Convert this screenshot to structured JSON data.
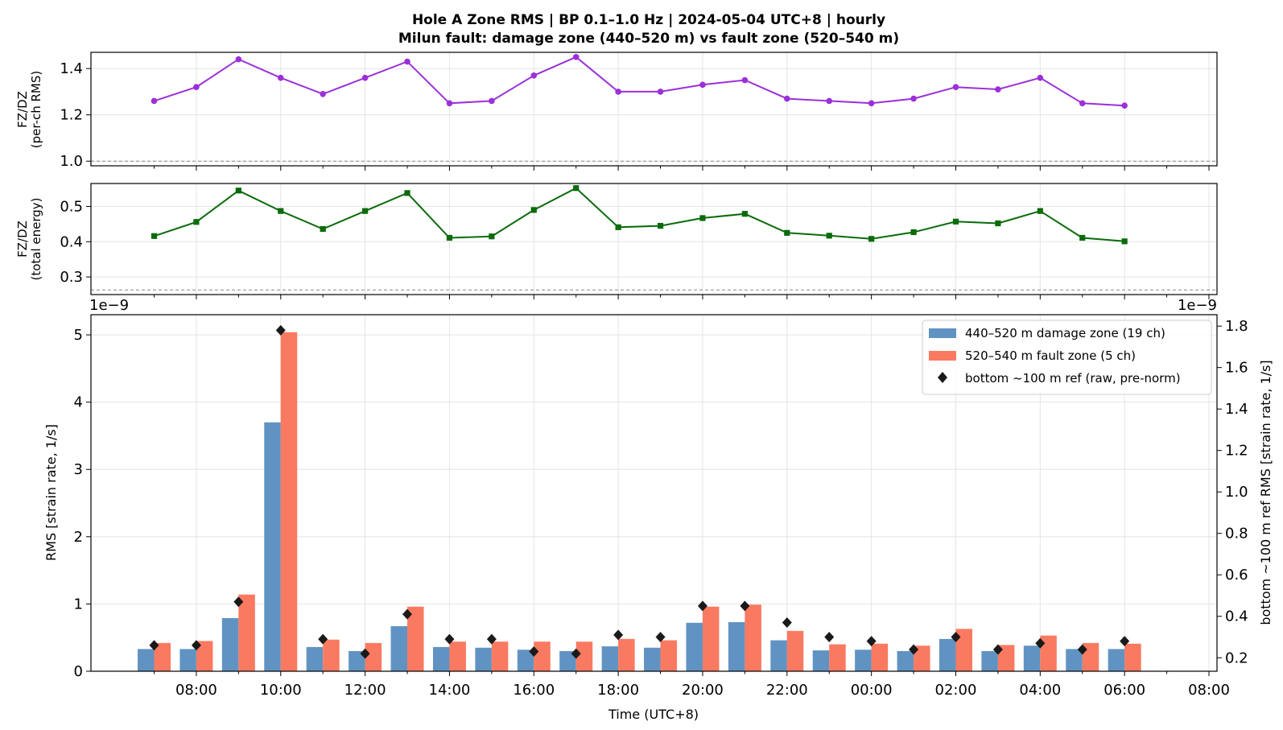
{
  "title_line1": "Hole A Zone RMS  |  BP 0.1–1.0 Hz  |  2024-05-04 UTC+8  |  hourly",
  "title_line2": "Milun fault: damage zone (440–520 m) vs fault zone (520–540 m)",
  "chart_data": [
    {
      "type": "line",
      "ylabel_line1": "FZ/DZ",
      "ylabel_line2": "(per-ch RMS)",
      "ylim": [
        0.98,
        1.47
      ],
      "yticks": [
        1.0,
        1.2,
        1.4
      ],
      "reference_line": 1.0,
      "color": "#9b30d9",
      "marker": "circle",
      "x": [
        "07:00",
        "08:00",
        "09:00",
        "10:00",
        "11:00",
        "12:00",
        "13:00",
        "14:00",
        "15:00",
        "16:00",
        "17:00",
        "18:00",
        "19:00",
        "20:00",
        "21:00",
        "22:00",
        "23:00",
        "00:00",
        "01:00",
        "02:00",
        "03:00",
        "04:00",
        "05:00",
        "06:00"
      ],
      "values": [
        1.26,
        1.32,
        1.44,
        1.36,
        1.29,
        1.36,
        1.43,
        1.25,
        1.26,
        1.37,
        1.45,
        1.3,
        1.3,
        1.33,
        1.35,
        1.27,
        1.26,
        1.25,
        1.27,
        1.32,
        1.31,
        1.36,
        1.25,
        1.24
      ]
    },
    {
      "type": "line",
      "ylabel_line1": "FZ/DZ",
      "ylabel_line2": "(total energy)",
      "ylim": [
        0.25,
        0.565
      ],
      "yticks": [
        0.3,
        0.4,
        0.5
      ],
      "reference_line": 0.263,
      "color": "#0a6b0a",
      "marker": "square",
      "x": [
        "07:00",
        "08:00",
        "09:00",
        "10:00",
        "11:00",
        "12:00",
        "13:00",
        "14:00",
        "15:00",
        "16:00",
        "17:00",
        "18:00",
        "19:00",
        "20:00",
        "21:00",
        "22:00",
        "23:00",
        "00:00",
        "01:00",
        "02:00",
        "03:00",
        "04:00",
        "05:00",
        "06:00"
      ],
      "values": [
        0.416,
        0.456,
        0.545,
        0.487,
        0.436,
        0.487,
        0.538,
        0.411,
        0.415,
        0.49,
        0.552,
        0.441,
        0.445,
        0.467,
        0.479,
        0.425,
        0.417,
        0.408,
        0.427,
        0.457,
        0.452,
        0.487,
        0.411,
        0.401
      ]
    },
    {
      "type": "bar",
      "xlabel": "Time (UTC+8)",
      "ylabel": "RMS  [strain rate, 1/s]",
      "ylabel_right": "bottom ~100 m ref RMS  [strain rate, 1/s]",
      "offset_label": "1e−9",
      "ylim": [
        0,
        5.3
      ],
      "yticks": [
        0,
        1,
        2,
        3,
        4,
        5
      ],
      "ylim_right": [
        0.135,
        1.855
      ],
      "yticks_right": [
        0.2,
        0.4,
        0.6,
        0.8,
        1.0,
        1.2,
        1.4,
        1.6,
        1.8
      ],
      "xtick_labels": [
        "08:00",
        "10:00",
        "12:00",
        "14:00",
        "16:00",
        "18:00",
        "20:00",
        "22:00",
        "00:00",
        "02:00",
        "04:00",
        "06:00",
        "08:00"
      ],
      "categories": [
        "07:00",
        "08:00",
        "09:00",
        "10:00",
        "11:00",
        "12:00",
        "13:00",
        "14:00",
        "15:00",
        "16:00",
        "17:00",
        "18:00",
        "19:00",
        "20:00",
        "21:00",
        "22:00",
        "23:00",
        "00:00",
        "01:00",
        "02:00",
        "03:00",
        "04:00",
        "05:00",
        "06:00"
      ],
      "series": [
        {
          "name": "440–520 m  damage zone (19 ch)",
          "color": "#6093c2",
          "values": [
            0.33,
            0.33,
            0.79,
            3.7,
            0.36,
            0.3,
            0.67,
            0.36,
            0.35,
            0.32,
            0.3,
            0.37,
            0.35,
            0.72,
            0.73,
            0.46,
            0.31,
            0.32,
            0.3,
            0.48,
            0.3,
            0.38,
            0.33,
            0.33
          ]
        },
        {
          "name": "520–540 m  fault zone (5 ch)",
          "color": "#fa7a61",
          "values": [
            0.42,
            0.45,
            1.14,
            5.04,
            0.47,
            0.42,
            0.96,
            0.44,
            0.44,
            0.44,
            0.44,
            0.48,
            0.46,
            0.96,
            0.99,
            0.6,
            0.4,
            0.41,
            0.38,
            0.63,
            0.39,
            0.53,
            0.42,
            0.41
          ]
        }
      ],
      "reference_series": {
        "name": "bottom ~100 m ref (raw, pre-norm)",
        "color": "#1a1a1a",
        "marker": "diamond",
        "values": [
          0.26,
          0.26,
          0.47,
          1.78,
          0.29,
          0.22,
          0.41,
          0.29,
          0.29,
          0.23,
          0.22,
          0.31,
          0.3,
          0.45,
          0.45,
          0.37,
          0.3,
          0.28,
          0.24,
          0.3,
          0.24,
          0.27,
          0.24,
          0.28
        ]
      },
      "legend_position": "upper right"
    }
  ]
}
